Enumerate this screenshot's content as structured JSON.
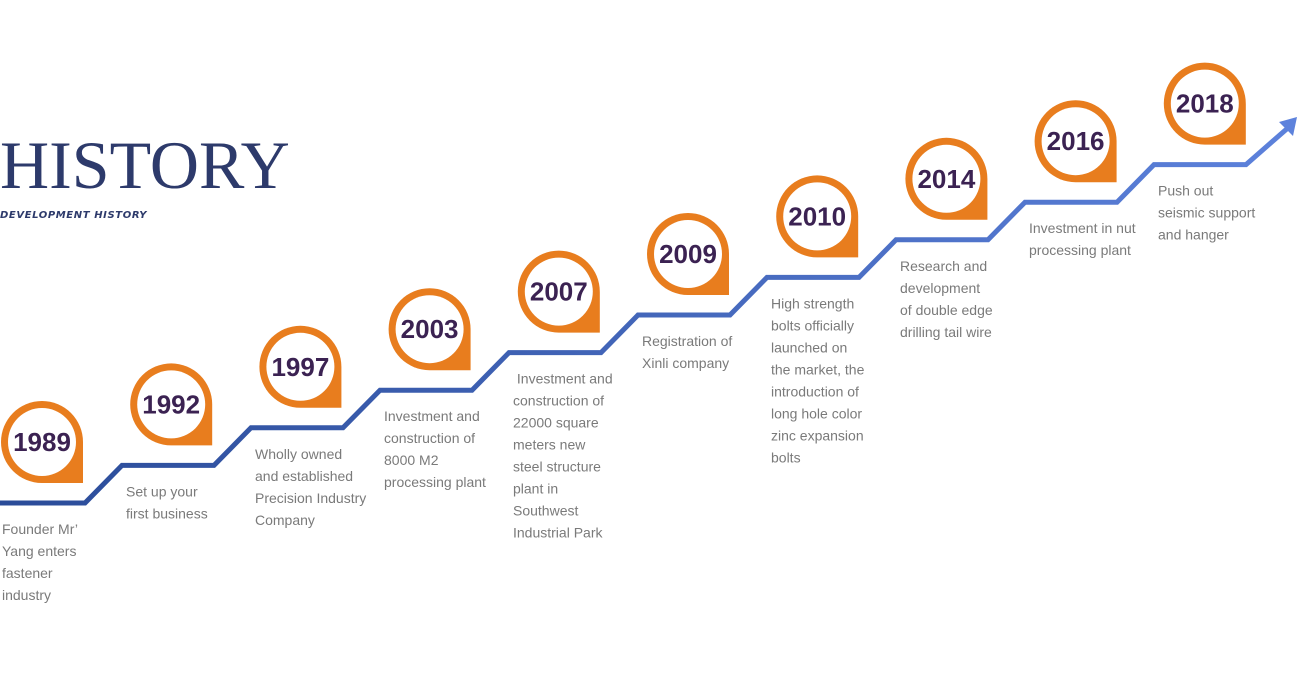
{
  "header": {
    "title": "HISTORY",
    "subtitle": "DEVELOPMENT HISTORY"
  },
  "events": [
    {
      "year": "1989",
      "lines": [
        "Founder Mr’",
        "Yang enters",
        "fastener",
        "industry"
      ]
    },
    {
      "year": "1992",
      "lines": [
        "Set up your",
        "first business"
      ]
    },
    {
      "year": "1997",
      "lines": [
        "Wholly owned",
        "and established",
        "Precision Industry",
        "Company"
      ]
    },
    {
      "year": "2003",
      "lines": [
        "Investment and",
        "construction of",
        "8000 M2",
        "processing plant"
      ]
    },
    {
      "year": "2007",
      "lines": [
        " Investment and",
        "construction of",
        "22000 square",
        "meters new",
        "steel structure",
        "plant in",
        "Southwest",
        "Industrial Park"
      ]
    },
    {
      "year": "2009",
      "lines": [
        "Registration of",
        "Xinli company"
      ]
    },
    {
      "year": "2010",
      "lines": [
        "High strength",
        "bolts officially",
        "launched on",
        "the market, the",
        "introduction of",
        "long hole color",
        "zinc expansion",
        "bolts"
      ]
    },
    {
      "year": "2014",
      "lines": [
        "Research and",
        "development",
        "of double edge",
        "drilling tail wire"
      ]
    },
    {
      "year": "2016",
      "lines": [
        "Investment in nut",
        "processing plant"
      ]
    },
    {
      "year": "2018",
      "lines": [
        "Push out",
        "seismic support",
        "and hanger"
      ]
    }
  ]
}
